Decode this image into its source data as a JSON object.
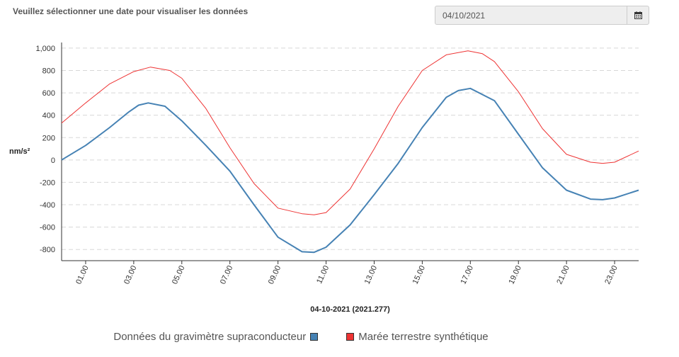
{
  "header": {
    "prompt": "Veuillez sélectionner une date pour visualiser les données",
    "date_value": "04/10/2021",
    "calendar_icon": "calendar-icon"
  },
  "colors": {
    "gravimeter": "#4682b4",
    "tide": "#ee3333",
    "grid": "#d8d8d8",
    "axis": "#333333"
  },
  "chart_data": {
    "type": "line",
    "title": "",
    "xlabel": "04-10-2021 (2021.277)",
    "ylabel": "nm/s²",
    "xlim": [
      0,
      24
    ],
    "ylim": [
      -900,
      1050
    ],
    "yticks": [
      -800,
      -600,
      -400,
      -200,
      0,
      200,
      400,
      600,
      800,
      1000
    ],
    "ytick_labels": [
      "-800",
      "-600",
      "-400",
      "-200",
      "0",
      "200",
      "400",
      "600",
      "800",
      "1,000"
    ],
    "xticks": [
      1,
      3,
      5,
      7,
      9,
      11,
      13,
      15,
      17,
      19,
      21,
      23
    ],
    "xtick_labels": [
      "01.00",
      "03.00",
      "05.00",
      "07.00",
      "09.00",
      "11.00",
      "13.00",
      "15.00",
      "17.00",
      "19.00",
      "21.00",
      "23.00"
    ],
    "grid": "horizontal dashed",
    "legend_position": "bottom",
    "series": [
      {
        "name": "Données du gravimètre supraconducteur",
        "color": "#4682b4",
        "x": [
          0,
          1,
          2,
          2.8,
          3.2,
          3.6,
          4.3,
          5,
          6,
          7,
          8,
          9,
          10,
          10.5,
          11,
          12,
          13,
          14,
          15,
          16,
          16.5,
          17,
          18,
          19,
          20,
          21,
          22,
          22.5,
          23,
          24
        ],
        "y": [
          0,
          130,
          290,
          430,
          490,
          510,
          480,
          350,
          130,
          -100,
          -400,
          -690,
          -820,
          -825,
          -780,
          -580,
          -310,
          -30,
          290,
          560,
          620,
          640,
          530,
          230,
          -70,
          -270,
          -350,
          -355,
          -340,
          -270
        ]
      },
      {
        "name": "Marée terrestre synthétique",
        "color": "#ee3333",
        "x": [
          0,
          1,
          2,
          3,
          3.7,
          4.5,
          5,
          6,
          7,
          8,
          9,
          10,
          10.5,
          11,
          12,
          13,
          14,
          15,
          16,
          16.9,
          17.5,
          18,
          19,
          20,
          21,
          22,
          22.5,
          23,
          24
        ],
        "y": [
          330,
          510,
          680,
          790,
          830,
          800,
          730,
          460,
          110,
          -210,
          -430,
          -480,
          -490,
          -470,
          -260,
          100,
          480,
          800,
          940,
          975,
          950,
          880,
          610,
          280,
          50,
          -20,
          -30,
          -20,
          80
        ]
      }
    ]
  }
}
